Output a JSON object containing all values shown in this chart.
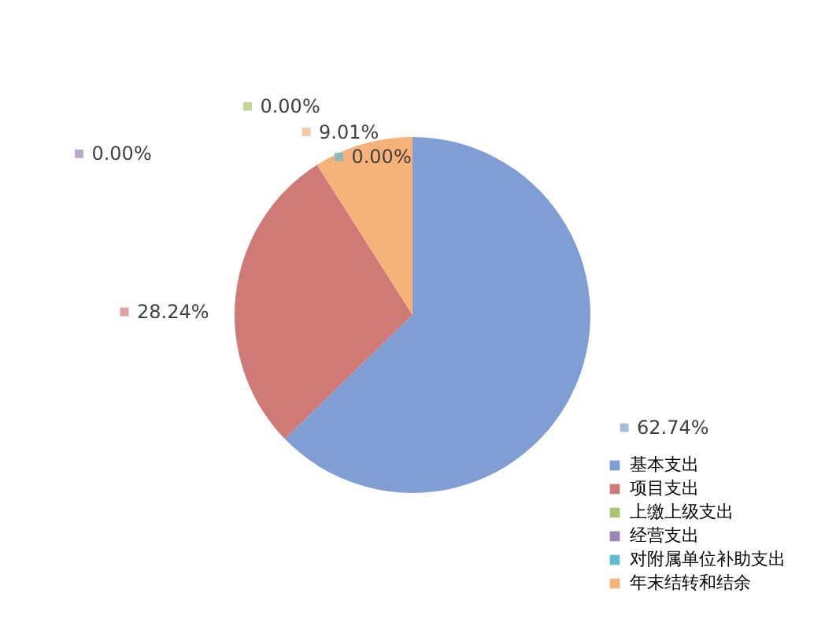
{
  "chart_data": {
    "type": "pie",
    "categories": [
      "基本支出",
      "项目支出",
      "上缴上级支出",
      "经营支出",
      "对附属单位补助支出",
      "年末结转和结余"
    ],
    "values": [
      62.74,
      28.24,
      0.0,
      0.0,
      0.0,
      9.01
    ],
    "colors": [
      "#7f9fd4",
      "#d07a78",
      "#a9c46f",
      "#9a84bb",
      "#5fbcd3",
      "#f7b27a"
    ],
    "value_labels": [
      "62.74%",
      "28.24%",
      "0.00%",
      "0.00%",
      "0.00%",
      "9.01%"
    ],
    "legend": "bottom right"
  }
}
